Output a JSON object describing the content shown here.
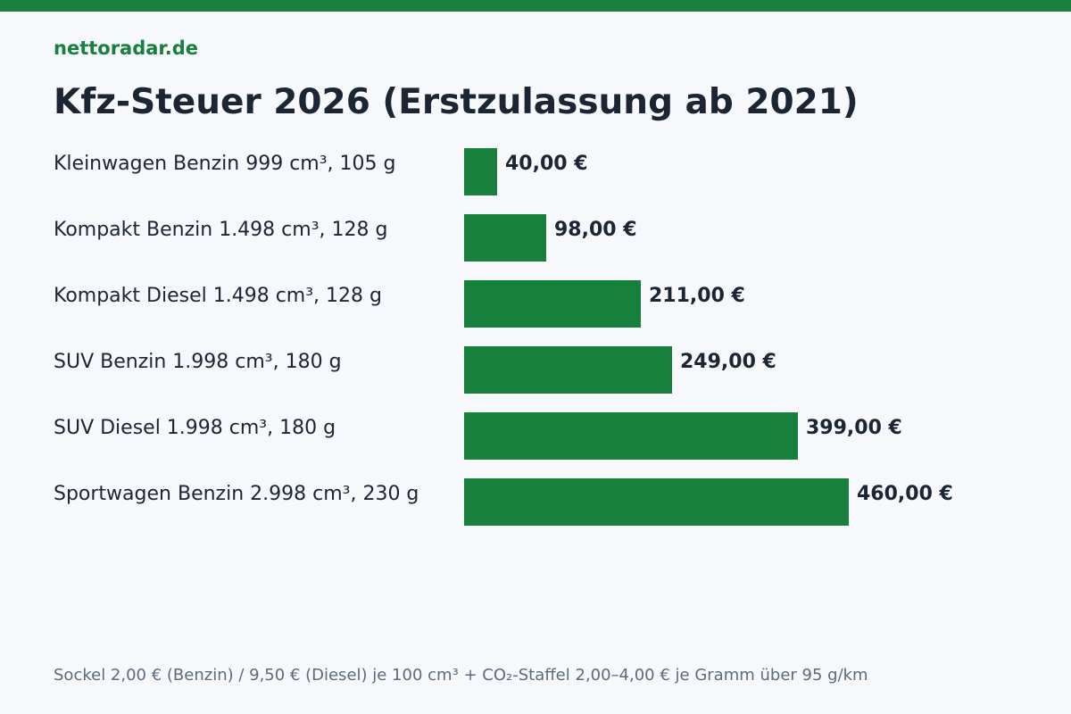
{
  "brand": "nettoradar.de",
  "accent_color": "#17803d",
  "footnote": "Sockel 2,00 € (Benzin) / 9,50 € (Diesel) je 100 cm³ + CO₂-Staffel 2,00–4,00 € je Gramm über 95 g/km",
  "chart_data": {
    "type": "bar",
    "orientation": "horizontal",
    "title": "Kfz-Steuer 2026 (Erstzulassung ab 2021)",
    "xlabel": "",
    "ylabel": "",
    "grid": false,
    "categories": [
      "Kleinwagen Benzin 999 cm³, 105 g",
      "Kompakt Benzin 1.498 cm³, 128 g",
      "Kompakt Diesel 1.498 cm³, 128 g",
      "SUV Benzin 1.998 cm³, 180 g",
      "SUV Diesel 1.998 cm³, 180 g",
      "Sportwagen Benzin 2.998 cm³, 230 g"
    ],
    "values": [
      40,
      98,
      211,
      249,
      399,
      460
    ],
    "value_labels": [
      "40,00 €",
      "98,00 €",
      "211,00 €",
      "249,00 €",
      "399,00 €",
      "460,00 €"
    ],
    "unit": "€",
    "bar_color": "#17803d"
  }
}
